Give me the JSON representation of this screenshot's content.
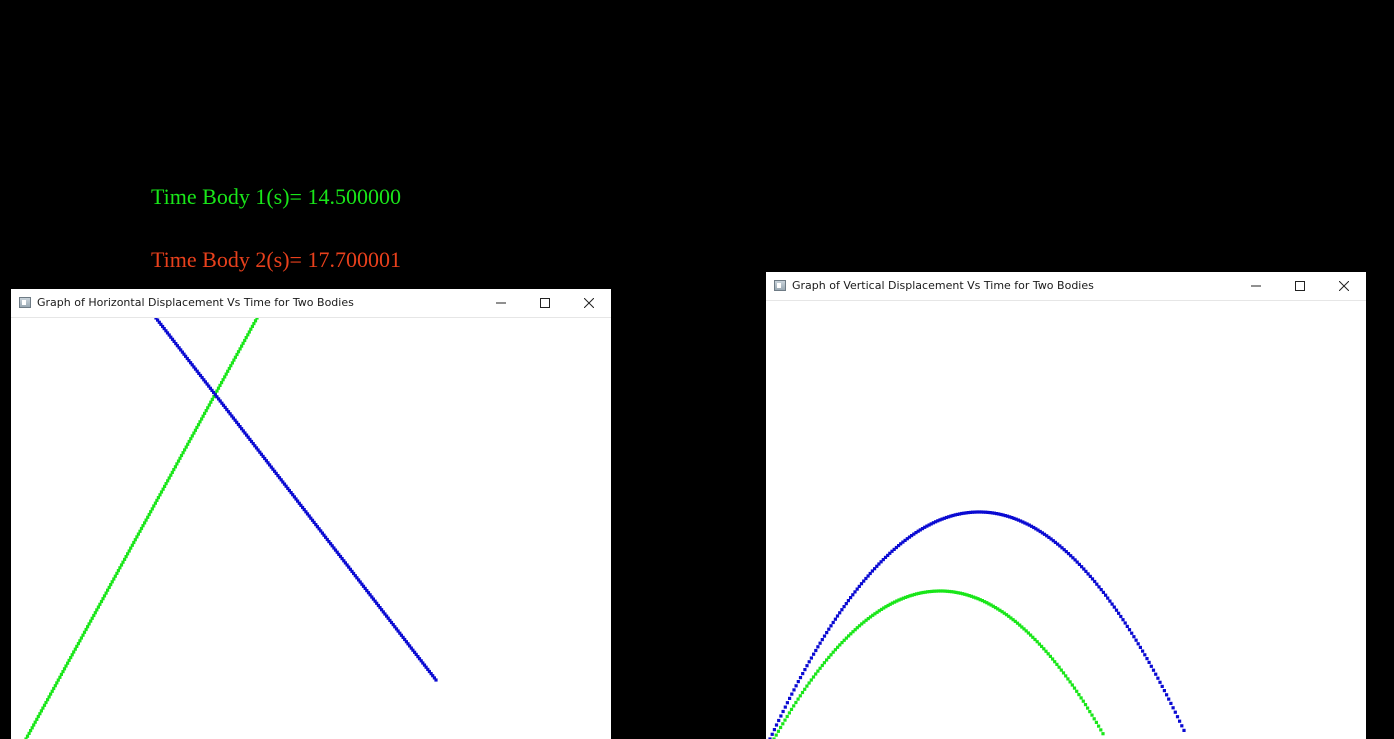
{
  "console": {
    "time_body1": "Time Body 1(s)= 14.500000",
    "time_body2": "Time Body 2(s)= 17.700001",
    "colors": {
      "body1": "#19e619",
      "body2": "#e8401c",
      "background": "#000000"
    }
  },
  "window_horizontal": {
    "title": "Graph of Horizontal Displacement Vs Time for Two Bodies",
    "icon": "app-window-icon",
    "controls": [
      "minimize-icon",
      "maximize-icon",
      "close-icon"
    ]
  },
  "window_vertical": {
    "title": "Graph of Vertical Displacement Vs Time for Two Bodies",
    "icon": "app-window-icon",
    "controls": [
      "minimize-icon",
      "maximize-icon",
      "close-icon"
    ]
  },
  "series_colors": {
    "body1": "#19e619",
    "body2": "#0a0ad2"
  }
}
